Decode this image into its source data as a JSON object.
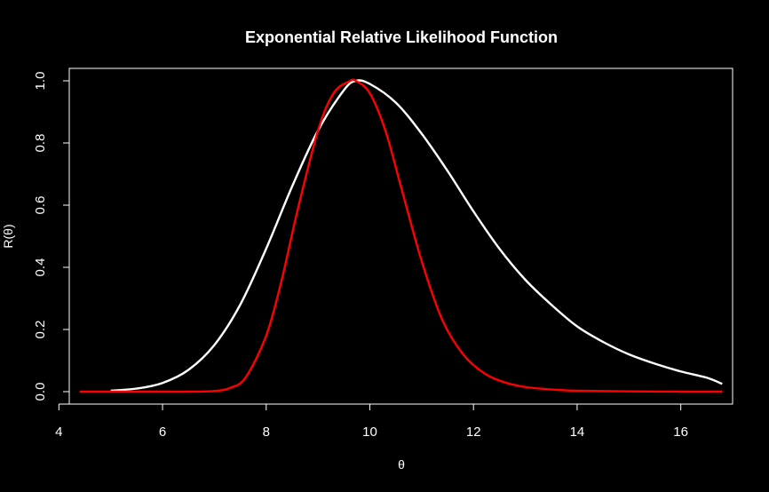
{
  "chart_data": {
    "type": "line",
    "title": "Exponential Relative Likelihood Function",
    "xlabel": "θ",
    "ylabel": "R(θ)",
    "xlim": [
      4.2,
      17.0
    ],
    "ylim": [
      -0.04,
      1.04
    ],
    "xticks": [
      "4",
      "6",
      "8",
      "10",
      "12",
      "14",
      "16"
    ],
    "yticks": [
      "0.0",
      "0.2",
      "0.4",
      "0.6",
      "0.8",
      "1.0"
    ],
    "grid": false,
    "background": "#000000",
    "series": [
      {
        "color": "#ffffff",
        "x": [
          5.0,
          5.5,
          6.0,
          6.5,
          7.0,
          7.5,
          8.0,
          8.5,
          9.0,
          9.5,
          9.73,
          10.0,
          10.5,
          11.0,
          11.5,
          12.0,
          12.5,
          13.0,
          13.5,
          14.0,
          14.5,
          15.0,
          15.5,
          16.0,
          16.5,
          16.8
        ],
        "y": [
          0.003,
          0.01,
          0.028,
          0.07,
          0.15,
          0.28,
          0.46,
          0.66,
          0.84,
          0.97,
          1.0,
          0.99,
          0.93,
          0.83,
          0.71,
          0.58,
          0.46,
          0.36,
          0.28,
          0.21,
          0.16,
          0.12,
          0.09,
          0.065,
          0.045,
          0.025
        ]
      },
      {
        "color": "#ff0000",
        "x": [
          4.4,
          5.0,
          5.5,
          6.0,
          6.5,
          7.0,
          7.3,
          7.6,
          8.0,
          8.3,
          8.6,
          9.0,
          9.3,
          9.6,
          9.73,
          10.0,
          10.3,
          10.6,
          11.0,
          11.4,
          11.8,
          12.2,
          12.6,
          13.0,
          13.5,
          14.0,
          15.0,
          16.0,
          16.8
        ],
        "y": [
          0.0,
          0.0,
          0.0,
          0.0,
          0.0,
          0.002,
          0.012,
          0.045,
          0.18,
          0.36,
          0.58,
          0.84,
          0.96,
          0.998,
          1.0,
          0.96,
          0.84,
          0.66,
          0.42,
          0.23,
          0.12,
          0.06,
          0.03,
          0.015,
          0.007,
          0.003,
          0.001,
          0.0,
          0.0
        ]
      }
    ]
  }
}
